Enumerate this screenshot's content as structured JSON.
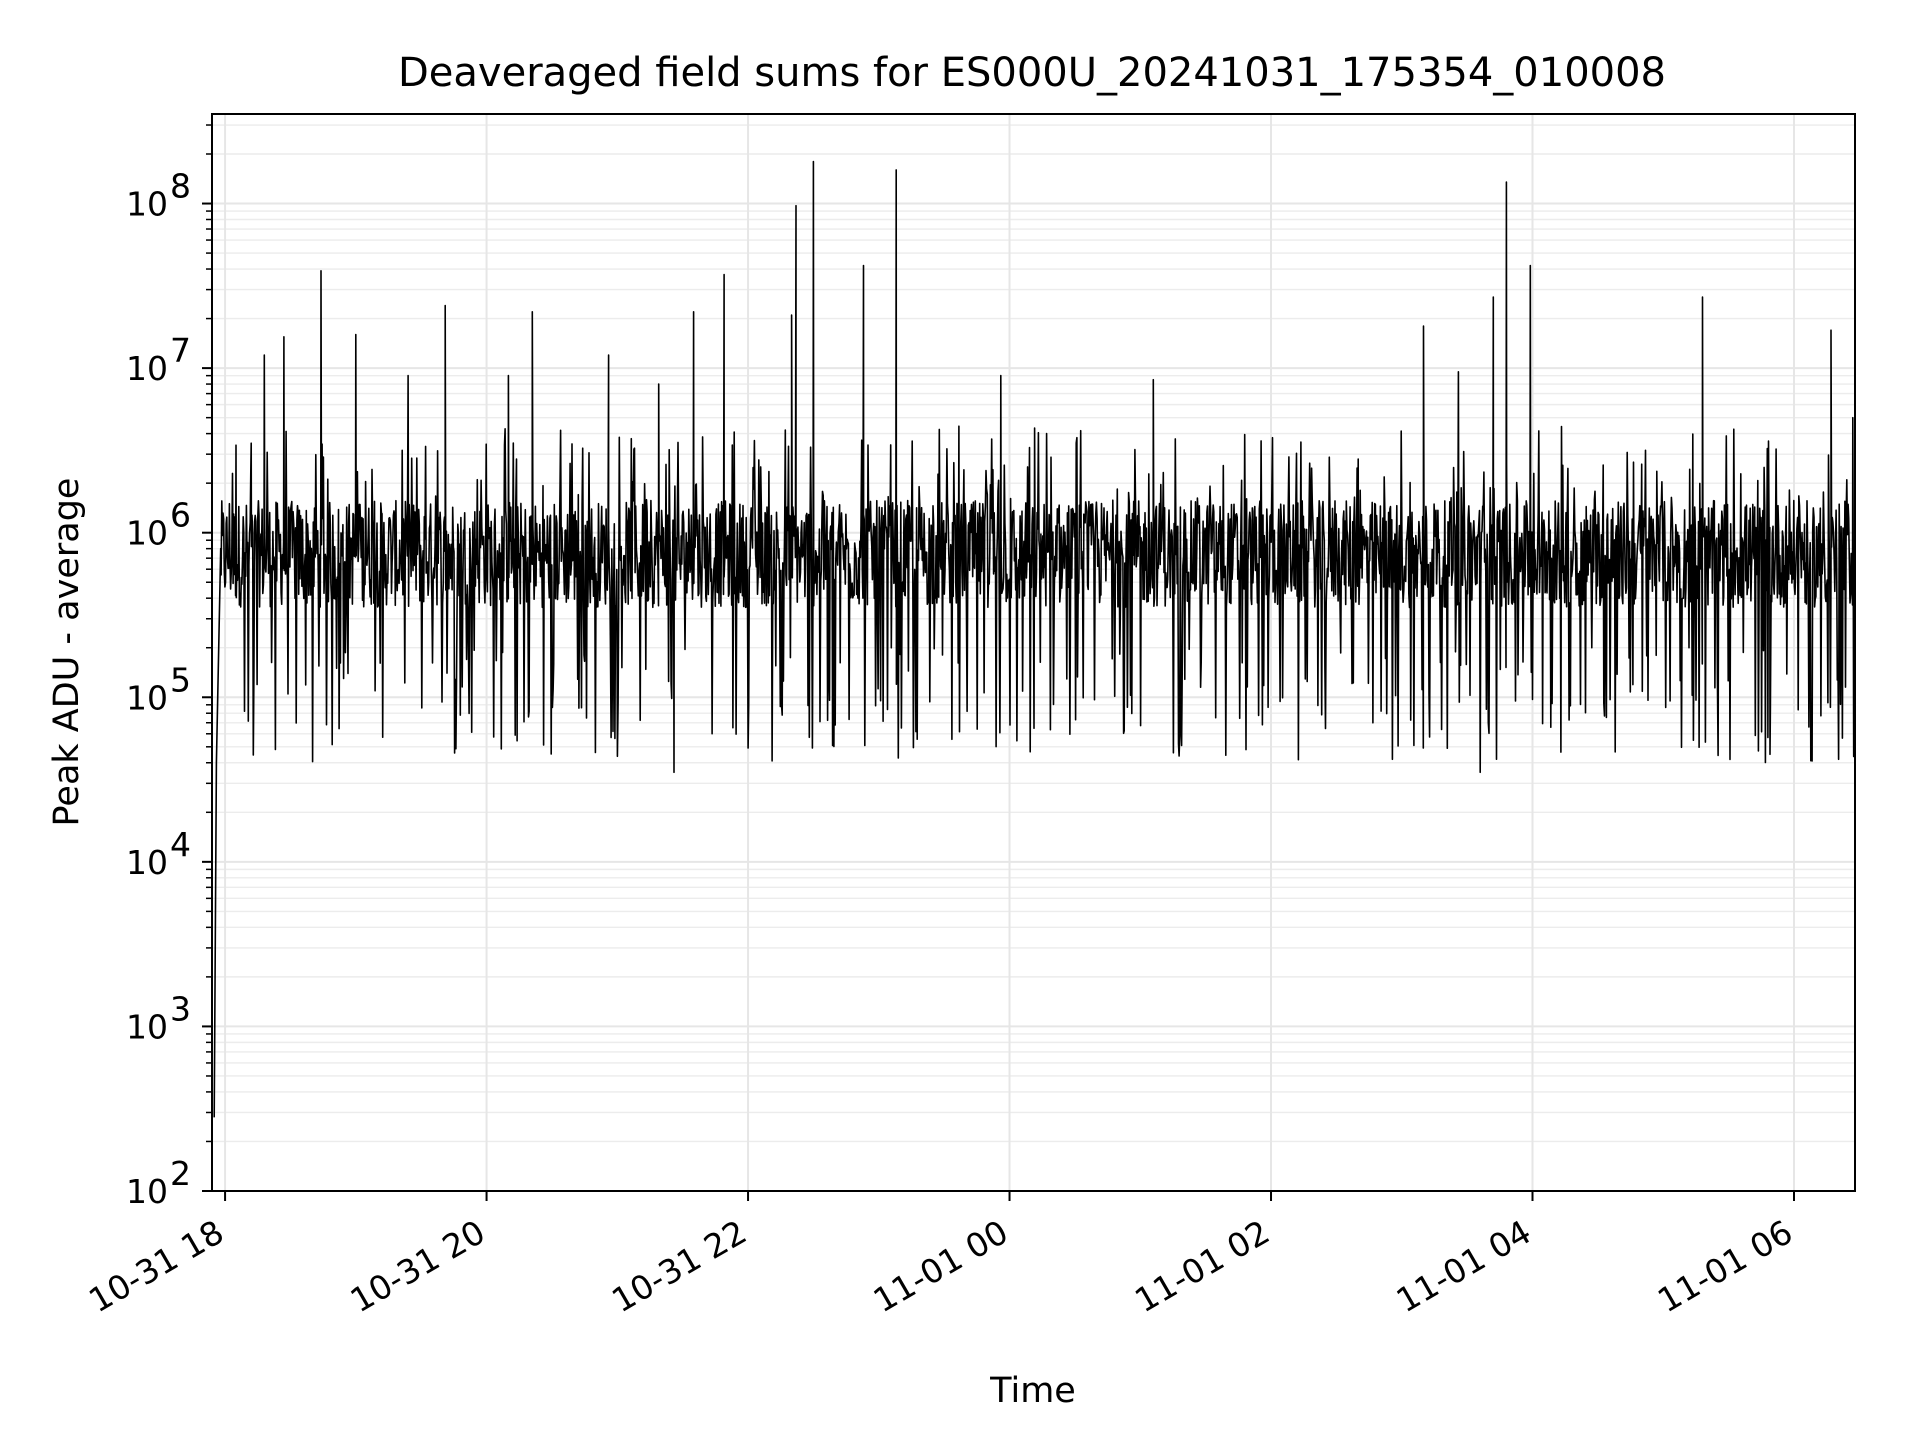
{
  "chart_data": {
    "type": "line",
    "title": "Deaveraged field sums for ES000U_20241031_175354_010008",
    "xlabel": "Time",
    "ylabel": "Peak ADU - average",
    "y_scale": "log",
    "ylim": [
      100,
      350000000
    ],
    "xlim": [
      "10-31 17:54",
      "11-01 06:28"
    ],
    "grid": true,
    "x_ticks": [
      {
        "label": "10-31 18",
        "value": "10-31 18:00"
      },
      {
        "label": "10-31 20",
        "value": "10-31 20:00"
      },
      {
        "label": "10-31 22",
        "value": "10-31 22:00"
      },
      {
        "label": "11-01 00",
        "value": "11-01 00:00"
      },
      {
        "label": "11-01 02",
        "value": "11-01 02:00"
      },
      {
        "label": "11-01 04",
        "value": "11-01 04:00"
      },
      {
        "label": "11-01 06",
        "value": "11-01 06:00"
      }
    ],
    "y_ticks": [
      {
        "label": "10",
        "exp": "2",
        "value": 100
      },
      {
        "label": "10",
        "exp": "3",
        "value": 1000
      },
      {
        "label": "10",
        "exp": "4",
        "value": 10000
      },
      {
        "label": "10",
        "exp": "5",
        "value": 100000
      },
      {
        "label": "10",
        "exp": "6",
        "value": 1000000
      },
      {
        "label": "10",
        "exp": "7",
        "value": 10000000
      },
      {
        "label": "10",
        "exp": "8",
        "value": 100000000
      }
    ],
    "series": [
      {
        "color": "#000000",
        "baseline_median": 800000,
        "points": [
          {
            "x": "10-31 17:55",
            "y": 280
          },
          {
            "x": "10-31 17:56",
            "y": 40000
          },
          {
            "x": "10-31 17:58",
            "y": 800000
          },
          {
            "x": "10-31 18:02",
            "y": 1500000
          },
          {
            "x": "10-31 18:05",
            "y": 3400000
          },
          {
            "x": "10-31 18:12",
            "y": 3500000
          },
          {
            "x": "10-31 18:18",
            "y": 12000000
          },
          {
            "x": "10-31 18:27",
            "y": 15500000
          },
          {
            "x": "10-31 18:44",
            "y": 39000000
          },
          {
            "x": "10-31 19:00",
            "y": 16000000
          },
          {
            "x": "10-31 19:24",
            "y": 9000000
          },
          {
            "x": "10-31 19:41",
            "y": 24000000
          },
          {
            "x": "10-31 20:10",
            "y": 9000000
          },
          {
            "x": "10-31 20:21",
            "y": 22000000
          },
          {
            "x": "10-31 20:56",
            "y": 12000000
          },
          {
            "x": "10-31 21:19",
            "y": 8000000
          },
          {
            "x": "10-31 21:26",
            "y": 35000
          },
          {
            "x": "10-31 21:35",
            "y": 22000000
          },
          {
            "x": "10-31 21:49",
            "y": 37000000
          },
          {
            "x": "10-31 22:20",
            "y": 21000000
          },
          {
            "x": "10-31 22:22",
            "y": 97000000
          },
          {
            "x": "10-31 22:30",
            "y": 180000000
          },
          {
            "x": "10-31 22:53",
            "y": 42000000
          },
          {
            "x": "10-31 23:08",
            "y": 160000000
          },
          {
            "x": "10-31 23:56",
            "y": 9000000
          },
          {
            "x": "11-01 01:06",
            "y": 8500000
          },
          {
            "x": "11-01 02:40",
            "y": 2800000
          },
          {
            "x": "11-01 03:10",
            "y": 18000000
          },
          {
            "x": "11-01 03:26",
            "y": 9500000
          },
          {
            "x": "11-01 03:36",
            "y": 35000
          },
          {
            "x": "11-01 03:42",
            "y": 27000000
          },
          {
            "x": "11-01 03:48",
            "y": 135000000
          },
          {
            "x": "11-01 03:59",
            "y": 42000000
          },
          {
            "x": "11-01 05:18",
            "y": 27000000
          },
          {
            "x": "11-01 05:49",
            "y": 45000
          },
          {
            "x": "11-01 06:17",
            "y": 17000000
          },
          {
            "x": "11-01 06:27",
            "y": 5000000
          }
        ]
      }
    ]
  }
}
